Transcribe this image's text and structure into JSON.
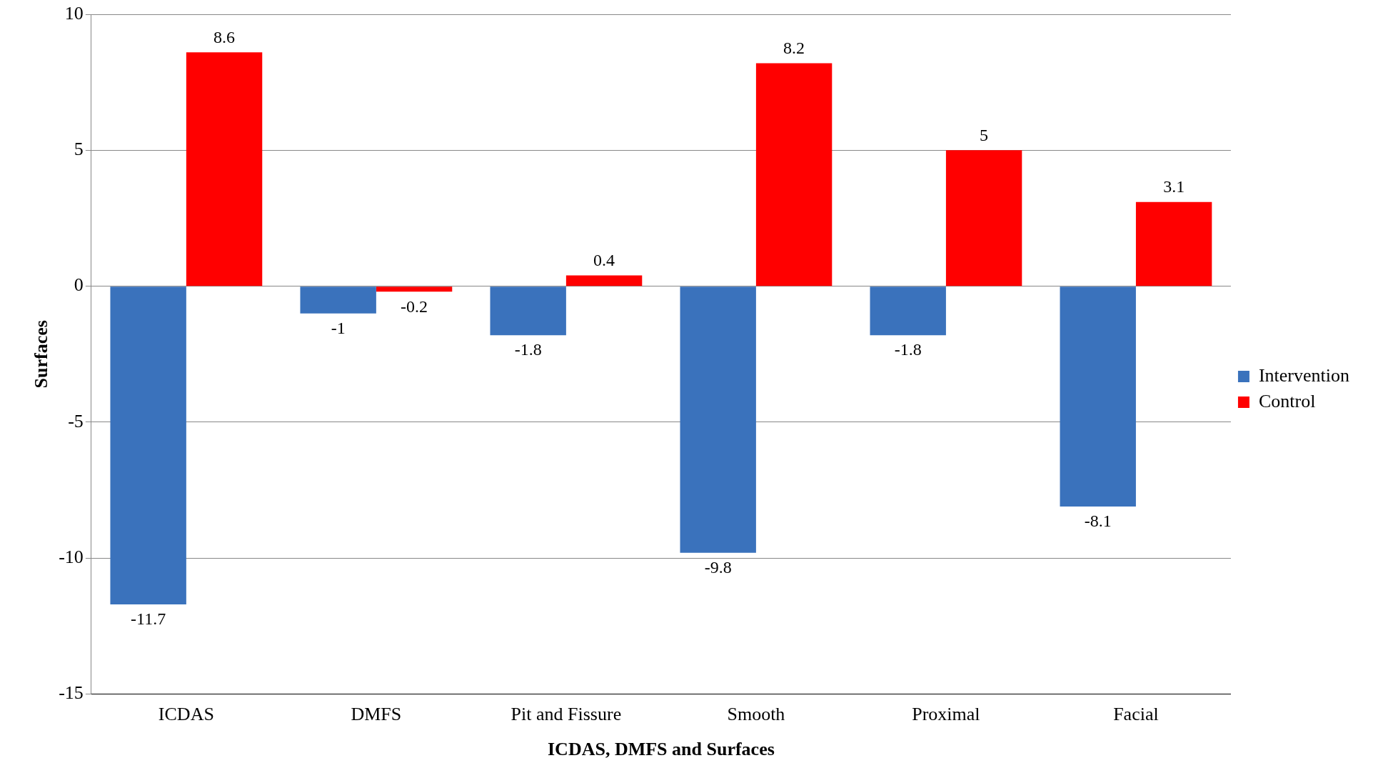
{
  "chart_data": {
    "type": "bar",
    "xlabel": "ICDAS, DMFS and Surfaces",
    "ylabel": "Surfaces",
    "categories": [
      "ICDAS",
      "DMFS",
      "Pit and Fissure",
      "Smooth",
      "Proximal",
      "Facial"
    ],
    "series": [
      {
        "name": "Intervention",
        "color": "#3a72bc",
        "values": [
          -11.7,
          -1,
          -1.8,
          -9.8,
          -1.8,
          -8.1
        ]
      },
      {
        "name": "Control",
        "color": "#ff0000",
        "values": [
          8.6,
          -0.2,
          0.4,
          8.2,
          5,
          3.1
        ]
      }
    ],
    "ylim": [
      -15,
      10
    ],
    "yticks": [
      -15,
      -10,
      -5,
      0,
      5,
      10
    ],
    "grid": "y",
    "legend": "right",
    "data_labels": true
  }
}
